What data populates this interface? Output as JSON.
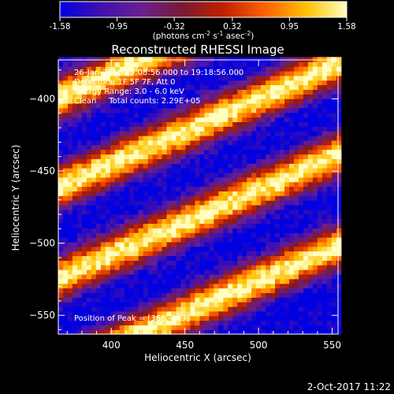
{
  "chart_data": {
    "type": "heatmap",
    "title": "Reconstructed RHESSI Image",
    "xlabel": "Heliocentric X (arcsec)",
    "ylabel": "Heliocentric Y (arcsec)",
    "xlim": [
      364,
      554
    ],
    "ylim": [
      -563,
      -373
    ],
    "x_ticks": [
      400,
      450,
      500,
      550
    ],
    "y_ticks": [
      -400,
      -450,
      -500,
      -550
    ],
    "colorbar": {
      "range": [
        -1.58,
        1.58
      ],
      "ticks": [
        "-1.58",
        "-0.95",
        "-0.32",
        "0.32",
        "0.95",
        "1.58"
      ],
      "units_label": "(photons cm",
      "units_parts": [
        "(photons cm",
        "-2",
        " s",
        "-1",
        " asec",
        "-2",
        ")"
      ],
      "colormap": [
        "#0000e0",
        "#4010b0",
        "#6a2090",
        "#7a1a30",
        "#c02000",
        "#ff6000",
        "#ffc000",
        "#ffffc0"
      ]
    },
    "annotations": [
      "26-Jan-2016 19:08:56.000 to 19:18:56.000",
      "Detectors: 1F 5F 7F, Att 0",
      "Energy Range: 3.0 - 6.0 keV",
      "Clean     Total counts: 2.29E+05"
    ],
    "peak_label": "Position of Peak = [388,-499]",
    "peak_position": [
      388,
      -499
    ],
    "stripe_pattern": {
      "orientation": "diagonal, rising to the right",
      "bright_band_centers_y_at_x364": [
        -400,
        -462,
        -525,
        -588
      ],
      "slope": 0.45,
      "period_arcsec": 62
    }
  },
  "footer_timestamp": "2-Oct-2017 11:22"
}
